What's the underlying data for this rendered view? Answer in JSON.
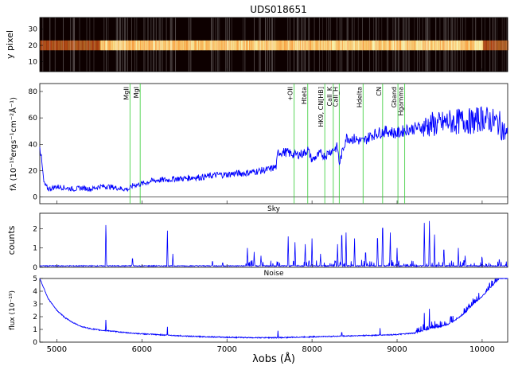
{
  "figure": {
    "title": "UDS018651",
    "xlabel": "λobs (Å)",
    "colors": {
      "line_color": "#0000ff",
      "marker_color": "#33cc33",
      "zero_line": "#000000",
      "image_low": "#0d0000",
      "image_high": "#ffffd0"
    }
  },
  "chart_data": [
    {
      "type": "heatmap",
      "panel": "2d-spectrum",
      "title": "UDS018651",
      "ylabel": "y pixel",
      "xlim": [
        4800,
        10300
      ],
      "ylim": [
        4,
        37
      ],
      "yticks": [
        10,
        20,
        30
      ],
      "trace_center_y": 20,
      "trace_bright_range": [
        5500,
        10000
      ]
    },
    {
      "type": "line",
      "panel": "flux-spectrum",
      "ylabel": "fλ (10⁻¹⁹ergs⁻¹cm⁻²Å⁻¹)",
      "xlim": [
        4800,
        10300
      ],
      "ylim": [
        -5,
        86
      ],
      "yticks": [
        0,
        20,
        40,
        60,
        80
      ],
      "series": [
        {
          "x": [
            4800,
            4850,
            4900,
            5000,
            5100,
            5200,
            5300,
            5400,
            5500,
            5600,
            5700,
            5800,
            5850,
            5900,
            6000,
            6100,
            6200,
            6300,
            6400,
            6500,
            6600,
            6700,
            6800,
            6900,
            7000,
            7100,
            7200,
            7300,
            7400,
            7500,
            7580,
            7600,
            7700,
            7800,
            7900,
            7950,
            8000,
            8100,
            8150,
            8200,
            8300,
            8320,
            8400,
            8500,
            8600,
            8700,
            8800,
            8900,
            9000,
            9100,
            9200,
            9300,
            9400,
            9500,
            9600,
            9700,
            9800,
            9900,
            10000,
            10100,
            10200,
            10300
          ],
          "y": [
            40,
            10,
            6,
            8,
            7,
            6,
            7,
            6,
            8,
            8,
            7,
            6,
            6,
            9,
            10,
            12,
            13,
            13,
            14,
            14,
            15,
            15,
            16,
            17,
            17,
            18,
            18,
            19,
            20,
            21,
            23,
            34,
            34,
            32,
            33,
            36,
            28,
            33,
            31,
            34,
            38,
            25,
            45,
            44,
            42,
            47,
            49,
            50,
            48,
            51,
            52,
            53,
            55,
            55,
            57,
            57,
            58,
            57,
            60,
            58,
            56,
            45
          ]
        }
      ],
      "line_markers": [
        {
          "label": "MgII",
          "x": 5860
        },
        {
          "label": "MgI",
          "x": 5980
        },
        {
          "label": "+OII",
          "x": 7790
        },
        {
          "label": "Hteta",
          "x": 7950
        },
        {
          "label": "HK9, CN[HB]",
          "x": 8150
        },
        {
          "label": "CaII_K",
          "x": 8250
        },
        {
          "label": "CaII_H",
          "x": 8320
        },
        {
          "label": "Hdelta",
          "x": 8600
        },
        {
          "label": "CN",
          "x": 8830
        },
        {
          "label": "Gband",
          "x": 9010
        },
        {
          "label": "Hgamma",
          "x": 9090
        }
      ]
    },
    {
      "type": "line",
      "panel": "sky",
      "title": "Sky",
      "ylabel": "counts",
      "xlim": [
        4800,
        10300
      ],
      "ylim": [
        0,
        2.8
      ],
      "yticks": [
        0,
        1,
        2
      ],
      "baseline": 0.05,
      "emission_lines": [
        {
          "x": 5577,
          "y": 2.5
        },
        {
          "x": 5890,
          "y": 0.6
        },
        {
          "x": 6300,
          "y": 1.9
        },
        {
          "x": 6364,
          "y": 0.7
        },
        {
          "x": 6830,
          "y": 0.4
        },
        {
          "x": 6950,
          "y": 0.3
        },
        {
          "x": 7240,
          "y": 1.0
        },
        {
          "x": 7320,
          "y": 0.8
        },
        {
          "x": 7400,
          "y": 0.6
        },
        {
          "x": 7720,
          "y": 1.6
        },
        {
          "x": 7800,
          "y": 1.3
        },
        {
          "x": 7920,
          "y": 1.2
        },
        {
          "x": 8000,
          "y": 1.5
        },
        {
          "x": 8100,
          "y": 0.7
        },
        {
          "x": 8300,
          "y": 1.2
        },
        {
          "x": 8350,
          "y": 2.2
        },
        {
          "x": 8400,
          "y": 1.8
        },
        {
          "x": 8500,
          "y": 1.5
        },
        {
          "x": 8630,
          "y": 1.0
        },
        {
          "x": 8770,
          "y": 2.0
        },
        {
          "x": 8830,
          "y": 2.7
        },
        {
          "x": 8920,
          "y": 1.8
        },
        {
          "x": 9000,
          "y": 1.0
        },
        {
          "x": 9320,
          "y": 2.3
        },
        {
          "x": 9380,
          "y": 2.4
        },
        {
          "x": 9440,
          "y": 1.7
        },
        {
          "x": 9550,
          "y": 1.2
        },
        {
          "x": 9720,
          "y": 1.0
        },
        {
          "x": 9800,
          "y": 0.6
        },
        {
          "x": 10000,
          "y": 0.5
        },
        {
          "x": 10200,
          "y": 0.4
        }
      ]
    },
    {
      "type": "line",
      "panel": "noise",
      "title": "Noise",
      "ylabel": "flux (10⁻¹⁹)",
      "xlim": [
        4800,
        10300
      ],
      "ylim": [
        0,
        5
      ],
      "yticks": [
        0,
        1,
        2,
        3,
        4,
        5
      ],
      "xticks": [
        5000,
        6000,
        7000,
        8000,
        9000,
        10000
      ],
      "series": [
        {
          "x": [
            4800,
            4850,
            4900,
            5000,
            5100,
            5200,
            5300,
            5400,
            5500,
            5600,
            5800,
            6000,
            6300,
            6600,
            7000,
            7300,
            7600,
            7900,
            8200,
            8500,
            8800,
            9000,
            9200,
            9300,
            9400,
            9500,
            9600,
            9700,
            9800,
            9900,
            10000,
            10100,
            10200
          ],
          "y": [
            5.0,
            4.2,
            3.4,
            2.5,
            1.9,
            1.5,
            1.2,
            1.05,
            0.95,
            0.9,
            0.75,
            0.65,
            0.55,
            0.45,
            0.38,
            0.35,
            0.35,
            0.4,
            0.45,
            0.5,
            0.55,
            0.6,
            0.7,
            0.9,
            1.1,
            1.2,
            1.4,
            1.8,
            2.3,
            3.0,
            3.6,
            4.3,
            5.0
          ]
        }
      ],
      "spikes": [
        {
          "x": 5577,
          "y": 2.0
        },
        {
          "x": 5890,
          "y": 0.9
        },
        {
          "x": 6300,
          "y": 1.2
        },
        {
          "x": 7600,
          "y": 0.9
        },
        {
          "x": 8350,
          "y": 1.0
        },
        {
          "x": 8800,
          "y": 1.1
        },
        {
          "x": 9320,
          "y": 1.8
        },
        {
          "x": 9380,
          "y": 2.5
        }
      ]
    }
  ]
}
